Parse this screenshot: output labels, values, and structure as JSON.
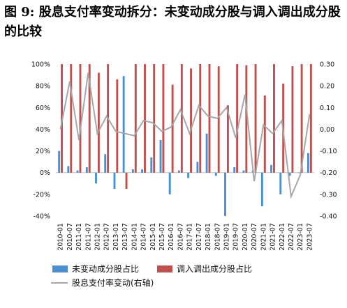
{
  "title": "图 9:  股息支付率变动拆分：未变动成分股与调入调出成分股的比较",
  "chart_data": {
    "type": "bar+line",
    "categories": [
      "2010-01",
      "2010-07",
      "2011-01",
      "2011-07",
      "2012-01",
      "2012-07",
      "2013-01",
      "2013-07",
      "2014-01",
      "2014-07",
      "2015-01",
      "2015-07",
      "2016-01",
      "2016-07",
      "2017-01",
      "2017-07",
      "2018-01",
      "2018-07",
      "2019-01",
      "2019-07",
      "2020-01",
      "2020-07",
      "2021-01",
      "2021-07",
      "2022-01",
      "2022-07",
      "2023-01",
      "2023-07"
    ],
    "series": [
      {
        "name": "未变动成分股占比",
        "axis": "left",
        "kind": "bar",
        "color": "#4a90d0",
        "values": [
          20,
          6,
          2,
          5,
          -10,
          17,
          -15,
          89,
          3,
          3,
          14,
          30,
          -20,
          2,
          -5,
          10,
          36,
          -3,
          -40,
          5,
          2,
          2,
          -31,
          7,
          -20,
          -3,
          0,
          18
        ]
      },
      {
        "name": "调入调出成分股占比",
        "axis": "left",
        "kind": "bar",
        "color": "#c0504d",
        "values": [
          100,
          100,
          100,
          100,
          92,
          100,
          86,
          -15,
          100,
          100,
          100,
          100,
          81,
          100,
          96,
          100,
          100,
          98,
          62,
          100,
          99,
          100,
          71,
          100,
          82,
          98,
          100,
          100
        ]
      },
      {
        "name": "股息支付率变动(右轴)",
        "axis": "right",
        "kind": "line",
        "color": "#a6a6a6",
        "values": [
          0.0,
          0.22,
          -0.05,
          0.26,
          -0.02,
          0.06,
          -0.01,
          -0.02,
          -0.03,
          0.04,
          0.03,
          -0.01,
          0.01,
          0.09,
          -0.02,
          0.11,
          0.06,
          0.05,
          0.1,
          -0.04,
          0.16,
          -0.24,
          0.02,
          -0.02,
          0.04,
          -0.31,
          -0.21,
          0.07
        ]
      }
    ],
    "y_left": {
      "min": -40,
      "max": 100,
      "step": 20,
      "format": "percent"
    },
    "y_right": {
      "min": -0.4,
      "max": 0.3,
      "step": 0.1,
      "format": "fixed2"
    },
    "grid": false,
    "legend": "bottom"
  },
  "colors": {
    "bar_unchanged": "#4a90d0",
    "bar_inout": "#c0504d",
    "line": "#a6a6a6"
  }
}
